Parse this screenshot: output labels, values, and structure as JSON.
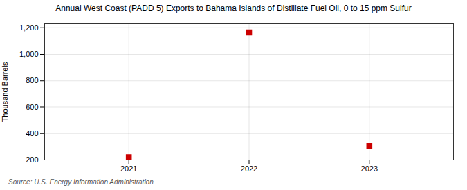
{
  "chart_data": {
    "type": "scatter",
    "title": "Annual West Coast (PADD 5) Exports to Bahama Islands of Distillate Fuel Oil, 0 to 15 ppm Sulfur",
    "ylabel": "Thousand Barrels",
    "source": "Source: U.S. Energy Information Administration",
    "x": [
      2021,
      2022,
      2023
    ],
    "values": [
      221,
      1165,
      305
    ],
    "color": "#cc0000",
    "marker": "square",
    "xlim": [
      2020.3,
      2023.7
    ],
    "xticks": [
      2021,
      2022,
      2023
    ],
    "ylim": [
      200,
      1230
    ],
    "yticks": [
      200,
      400,
      600,
      800,
      {
        "value": 1000,
        "label": "1,000"
      },
      {
        "value": 1200,
        "label": "1,200"
      }
    ],
    "grid": true
  }
}
